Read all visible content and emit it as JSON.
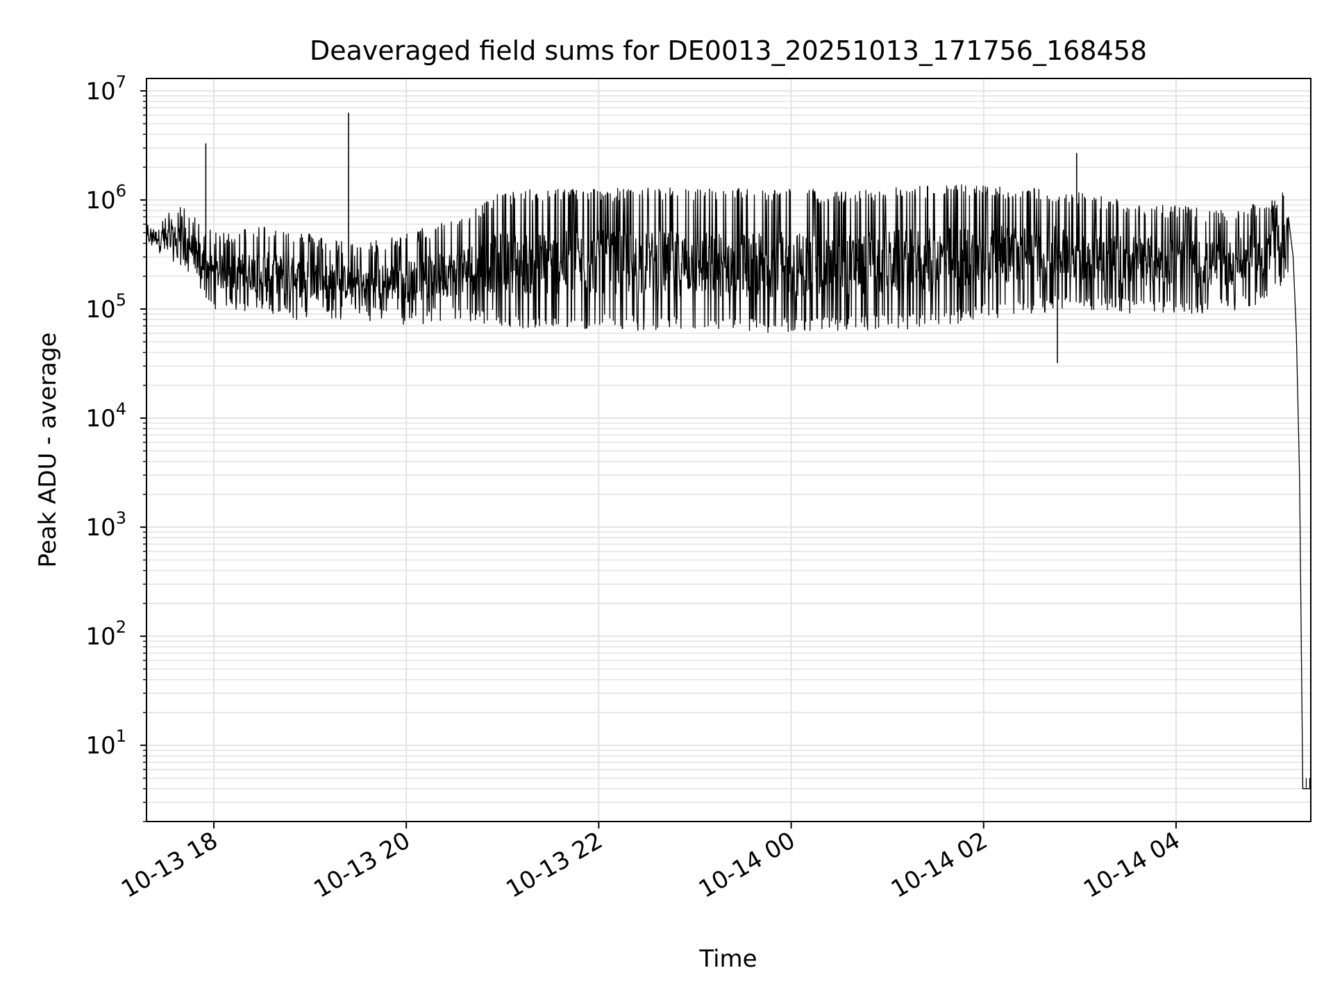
{
  "chart_data": {
    "type": "line",
    "title": "Deaveraged field sums for DE0013_20251013_171756_168458",
    "xlabel": "Time",
    "ylabel": "Peak ADU - average",
    "yscale": "log",
    "ylim": [
      2,
      13000000
    ],
    "xlim": [
      "2025-10-13 17:18",
      "2025-10-14 05:24"
    ],
    "grid": true,
    "line_color": "#000000",
    "x_ticks": [
      {
        "t": "2025-10-13 18:00",
        "label": "10-13 18"
      },
      {
        "t": "2025-10-13 20:00",
        "label": "10-13 20"
      },
      {
        "t": "2025-10-13 22:00",
        "label": "10-13 22"
      },
      {
        "t": "2025-10-14 00:00",
        "label": "10-14 00"
      },
      {
        "t": "2025-10-14 02:00",
        "label": "10-14 02"
      },
      {
        "t": "2025-10-14 04:00",
        "label": "10-14 04"
      }
    ],
    "y_ticks": [
      {
        "value": 10,
        "base": "10",
        "exp": "1"
      },
      {
        "value": 100,
        "base": "10",
        "exp": "2"
      },
      {
        "value": 1000,
        "base": "10",
        "exp": "3"
      },
      {
        "value": 10000,
        "base": "10",
        "exp": "4"
      },
      {
        "value": 100000,
        "base": "10",
        "exp": "5"
      },
      {
        "value": 1000000,
        "base": "10",
        "exp": "6"
      },
      {
        "value": 10000000,
        "base": "10",
        "exp": "7"
      }
    ],
    "series": [
      {
        "envelope": {
          "x": [
            "2025-10-13 17:18",
            "2025-10-13 17:40",
            "2025-10-13 18:00",
            "2025-10-13 18:30",
            "2025-10-13 19:00",
            "2025-10-13 19:30",
            "2025-10-13 20:00",
            "2025-10-13 20:30",
            "2025-10-13 21:00",
            "2025-10-13 21:30",
            "2025-10-13 22:00",
            "2025-10-13 22:30",
            "2025-10-13 23:00",
            "2025-10-13 23:30",
            "2025-10-14 00:00",
            "2025-10-14 00:30",
            "2025-10-14 01:00",
            "2025-10-14 01:30",
            "2025-10-14 02:00",
            "2025-10-14 02:30",
            "2025-10-14 03:00",
            "2025-10-14 03:30",
            "2025-10-14 04:00",
            "2025-10-14 04:30",
            "2025-10-14 05:00",
            "2025-10-14 05:10"
          ],
          "low": [
            350000,
            250000,
            100000,
            90000,
            75000,
            80000,
            70000,
            75000,
            70000,
            60000,
            65000,
            62000,
            60000,
            58000,
            60000,
            60000,
            65000,
            65000,
            80000,
            90000,
            100000,
            90000,
            90000,
            90000,
            120000,
            200000
          ],
          "high": [
            600000,
            900000,
            500000,
            600000,
            500000,
            400000,
            500000,
            700000,
            1200000,
            1300000,
            1300000,
            1300000,
            1300000,
            1300000,
            1300000,
            1200000,
            1300000,
            1400000,
            1400000,
            1300000,
            1200000,
            1000000,
            900000,
            800000,
            1000000,
            1300000
          ]
        },
        "spikes": [
          {
            "x": "2025-10-13 17:55",
            "y": 3300000
          },
          {
            "x": "2025-10-13 19:24",
            "y": 6300000
          },
          {
            "x": "2025-10-14 02:58",
            "y": 2700000
          },
          {
            "x": "2025-10-14 02:46",
            "y": 32000
          }
        ],
        "tail": {
          "x": [
            "2025-10-14 05:10",
            "2025-10-14 05:13",
            "2025-10-14 05:15",
            "2025-10-14 05:17",
            "2025-10-14 05:19",
            "2025-10-14 05:21",
            "2025-10-14 05:24"
          ],
          "y": [
            700000,
            300000,
            60000,
            3000,
            4,
            4,
            4
          ]
        }
      }
    ]
  }
}
